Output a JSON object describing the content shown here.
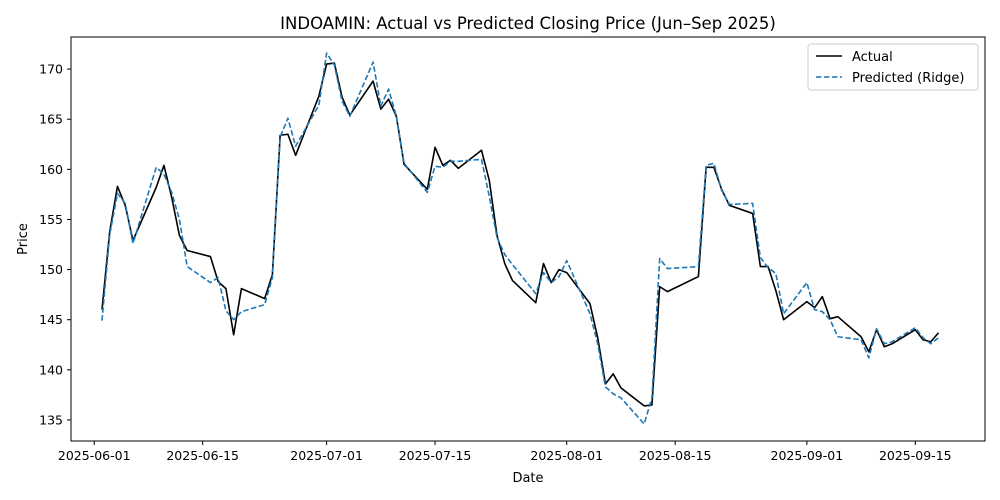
{
  "chart_data": {
    "type": "line",
    "title": "INDOAMIN: Actual vs Predicted Closing Price (Jun–Sep 2025)",
    "xlabel": "Date",
    "ylabel": "Price",
    "xlim": [
      "2025-05-29",
      "2025-09-24"
    ],
    "ylim": [
      132.9,
      173.2
    ],
    "yticks": [
      135,
      140,
      145,
      150,
      155,
      160,
      165,
      170
    ],
    "xticks": [
      "2025-06-01",
      "2025-06-15",
      "2025-07-01",
      "2025-07-15",
      "2025-08-01",
      "2025-08-15",
      "2025-09-01",
      "2025-09-15"
    ],
    "grid": false,
    "legend_position": "upper right",
    "series": [
      {
        "name": "Actual",
        "color": "#000000",
        "style": "solid",
        "x": [
          "2025-06-02",
          "2025-06-03",
          "2025-06-04",
          "2025-06-05",
          "2025-06-06",
          "2025-06-09",
          "2025-06-10",
          "2025-06-11",
          "2025-06-12",
          "2025-06-13",
          "2025-06-16",
          "2025-06-17",
          "2025-06-18",
          "2025-06-19",
          "2025-06-20",
          "2025-06-23",
          "2025-06-24",
          "2025-06-25",
          "2025-06-26",
          "2025-06-27",
          "2025-06-30",
          "2025-07-01",
          "2025-07-02",
          "2025-07-03",
          "2025-07-04",
          "2025-07-07",
          "2025-07-08",
          "2025-07-09",
          "2025-07-10",
          "2025-07-11",
          "2025-07-14",
          "2025-07-15",
          "2025-07-16",
          "2025-07-17",
          "2025-07-18",
          "2025-07-21",
          "2025-07-22",
          "2025-07-23",
          "2025-07-24",
          "2025-07-25",
          "2025-07-28",
          "2025-07-29",
          "2025-07-30",
          "2025-07-31",
          "2025-08-01",
          "2025-08-04",
          "2025-08-05",
          "2025-08-06",
          "2025-08-07",
          "2025-08-08",
          "2025-08-11",
          "2025-08-12",
          "2025-08-13",
          "2025-08-14",
          "2025-08-18",
          "2025-08-19",
          "2025-08-20",
          "2025-08-21",
          "2025-08-22",
          "2025-08-25",
          "2025-08-26",
          "2025-08-27",
          "2025-08-28",
          "2025-08-29",
          "2025-09-01",
          "2025-09-02",
          "2025-09-03",
          "2025-09-04",
          "2025-09-05",
          "2025-09-08",
          "2025-09-09",
          "2025-09-10",
          "2025-09-11",
          "2025-09-12",
          "2025-09-15",
          "2025-09-16",
          "2025-09-17",
          "2025-09-18"
        ],
        "values": [
          146.0,
          153.8,
          158.3,
          156.4,
          152.9,
          158.2,
          160.4,
          157.2,
          153.4,
          151.9,
          151.3,
          148.8,
          148.1,
          143.5,
          148.1,
          147.1,
          149.5,
          163.4,
          163.5,
          161.4,
          167.3,
          170.5,
          170.6,
          167.2,
          165.4,
          168.8,
          166.0,
          167.0,
          165.3,
          160.5,
          158.0,
          162.2,
          160.4,
          160.9,
          160.1,
          161.9,
          158.9,
          153.4,
          150.6,
          148.9,
          146.7,
          150.6,
          148.7,
          150.0,
          149.7,
          146.6,
          143.2,
          138.6,
          139.6,
          138.2,
          136.4,
          136.5,
          148.3,
          147.8,
          149.3,
          160.2,
          160.2,
          158.0,
          156.4,
          155.6,
          150.3,
          150.3,
          147.9,
          145.0,
          146.8,
          146.2,
          147.3,
          145.1,
          145.3,
          143.3,
          141.8,
          144.0,
          142.3,
          142.6,
          144.0,
          143.0,
          142.8,
          143.7
        ]
      },
      {
        "name": "Predicted (Ridge)",
        "color": "#1f77b4",
        "style": "dashed",
        "x": [
          "2025-06-02",
          "2025-06-03",
          "2025-06-04",
          "2025-06-05",
          "2025-06-06",
          "2025-06-09",
          "2025-06-10",
          "2025-06-11",
          "2025-06-12",
          "2025-06-13",
          "2025-06-16",
          "2025-06-17",
          "2025-06-18",
          "2025-06-19",
          "2025-06-20",
          "2025-06-23",
          "2025-06-24",
          "2025-06-25",
          "2025-06-26",
          "2025-06-27",
          "2025-06-30",
          "2025-07-01",
          "2025-07-02",
          "2025-07-03",
          "2025-07-04",
          "2025-07-07",
          "2025-07-08",
          "2025-07-09",
          "2025-07-10",
          "2025-07-11",
          "2025-07-14",
          "2025-07-15",
          "2025-07-16",
          "2025-07-17",
          "2025-07-18",
          "2025-07-21",
          "2025-07-22",
          "2025-07-23",
          "2025-07-24",
          "2025-07-25",
          "2025-07-28",
          "2025-07-29",
          "2025-07-30",
          "2025-07-31",
          "2025-08-01",
          "2025-08-04",
          "2025-08-05",
          "2025-08-06",
          "2025-08-07",
          "2025-08-08",
          "2025-08-11",
          "2025-08-12",
          "2025-08-13",
          "2025-08-14",
          "2025-08-18",
          "2025-08-19",
          "2025-08-20",
          "2025-08-21",
          "2025-08-22",
          "2025-08-25",
          "2025-08-26",
          "2025-08-27",
          "2025-08-28",
          "2025-08-29",
          "2025-09-01",
          "2025-09-02",
          "2025-09-03",
          "2025-09-04",
          "2025-09-05",
          "2025-09-08",
          "2025-09-09",
          "2025-09-10",
          "2025-09-11",
          "2025-09-12",
          "2025-09-15",
          "2025-09-16",
          "2025-09-17",
          "2025-09-18"
        ],
        "values": [
          144.9,
          153.5,
          157.6,
          156.6,
          152.6,
          160.2,
          159.5,
          157.7,
          155.0,
          150.3,
          148.7,
          149.2,
          145.9,
          145.0,
          145.8,
          146.5,
          149.2,
          163.2,
          165.1,
          162.3,
          166.4,
          171.6,
          170.4,
          166.8,
          165.3,
          170.7,
          166.3,
          168.0,
          165.3,
          160.6,
          157.7,
          160.3,
          160.2,
          160.8,
          160.8,
          161.0,
          157.3,
          153.2,
          151.5,
          150.5,
          147.6,
          149.7,
          148.7,
          149.3,
          150.9,
          145.6,
          142.6,
          138.3,
          137.6,
          137.2,
          134.6,
          137.2,
          151.1,
          150.1,
          150.3,
          160.4,
          160.6,
          157.9,
          156.5,
          156.6,
          151.2,
          150.2,
          149.6,
          145.6,
          148.7,
          146.0,
          145.8,
          145.0,
          143.3,
          143.0,
          141.2,
          144.1,
          142.6,
          142.8,
          144.2,
          143.2,
          142.6,
          143.2
        ]
      }
    ]
  }
}
